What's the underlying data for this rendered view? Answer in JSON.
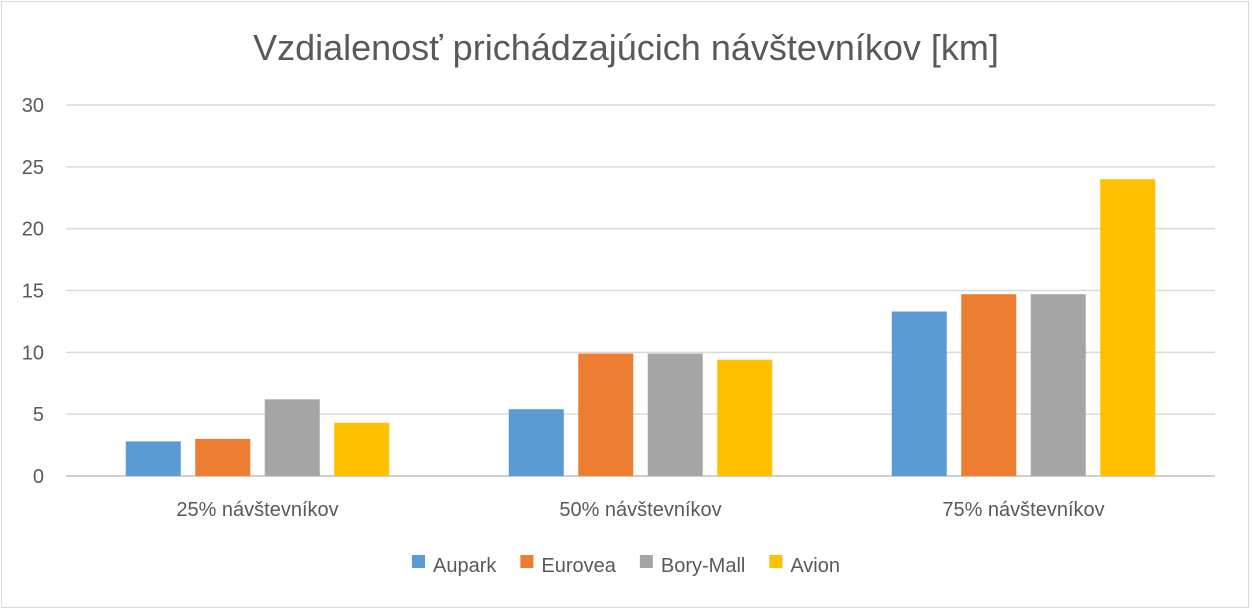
{
  "chart_data": {
    "type": "bar",
    "title": "Vzdialenosť prichádzajúcich návštevníkov [km]",
    "xlabel": "",
    "ylabel": "",
    "ylim": [
      0,
      30
    ],
    "yticks": [
      "0",
      "5",
      "10",
      "15",
      "20",
      "25",
      "30"
    ],
    "categories": [
      "25% návštevníkov",
      "50% návštevníkov",
      "75% návštevníkov"
    ],
    "series": [
      {
        "name": "Aupark",
        "color": "#5b9bd5",
        "values": [
          2.8,
          5.4,
          13.3
        ]
      },
      {
        "name": "Eurovea",
        "color": "#ed7d31",
        "values": [
          3.0,
          9.9,
          14.7
        ]
      },
      {
        "name": "Bory-Mall",
        "color": "#a5a5a5",
        "values": [
          6.2,
          9.9,
          14.7
        ]
      },
      {
        "name": "Avion",
        "color": "#ffc000",
        "values": [
          4.3,
          9.4,
          24.0
        ]
      }
    ],
    "grid": true,
    "legend_position": "bottom"
  }
}
